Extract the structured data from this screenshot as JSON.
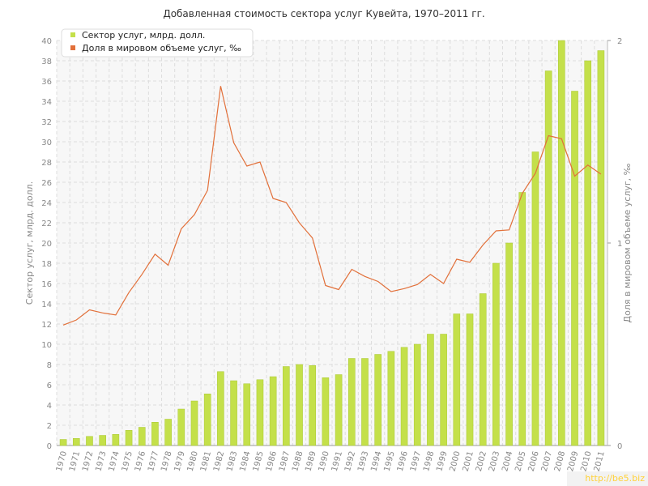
{
  "title": "Добавленная стоимость сектора услуг Кувейта, 1970–2011 гг.",
  "watermark": "http://be5.biz",
  "colors": {
    "bar": "#c4e04a",
    "bar_edge": "#a9c832",
    "line": "#e2703a",
    "grid": "#dddddd",
    "plot_bg": "#f7f7f7"
  },
  "chart_data": {
    "type": "bar",
    "title": "Добавленная стоимость сектора услуг Кувейта, 1970–2011 гг.",
    "xlabel": "",
    "ylabel": "Сектор услуг, млрд. долл.",
    "y2label": "Доля в мировом объеме услуг, ‰",
    "ylim": [
      0,
      40
    ],
    "y2lim": [
      0,
      2
    ],
    "yticks": [
      "0",
      "2",
      "4",
      "6",
      "8",
      "10",
      "12",
      "14",
      "16",
      "18",
      "20",
      "22",
      "24",
      "26",
      "28",
      "30",
      "32",
      "34",
      "36",
      "38",
      "40"
    ],
    "y2ticks": [
      "0",
      "1",
      "2"
    ],
    "grid": true,
    "legend_position": "top-left",
    "categories": [
      "1970",
      "1971",
      "1972",
      "1973",
      "1974",
      "1975",
      "1976",
      "1977",
      "1978",
      "1979",
      "1980",
      "1981",
      "1982",
      "1983",
      "1984",
      "1985",
      "1986",
      "1987",
      "1988",
      "1989",
      "1990",
      "1991",
      "1992",
      "1993",
      "1994",
      "1995",
      "1996",
      "1997",
      "1998",
      "1999",
      "2000",
      "2001",
      "2002",
      "2003",
      "2004",
      "2005",
      "2006",
      "2007",
      "2008",
      "2009",
      "2010",
      "2011"
    ],
    "series": [
      {
        "name": "Сектор услуг, млрд. долл.",
        "type": "bar",
        "axis": "left",
        "values": [
          0.6,
          0.7,
          0.9,
          1.0,
          1.1,
          1.5,
          1.8,
          2.3,
          2.6,
          3.6,
          4.4,
          5.1,
          7.3,
          6.4,
          6.1,
          6.5,
          6.8,
          7.8,
          8.0,
          7.9,
          6.7,
          7.0,
          8.6,
          8.6,
          9.0,
          9.3,
          9.7,
          10.0,
          11.0,
          11.0,
          13.0,
          13.0,
          15.0,
          18.0,
          20.0,
          25.0,
          29.0,
          37.0,
          40.0,
          35.0,
          38.0,
          39.0
        ]
      },
      {
        "name": "Доля в мировом объеме услуг, ‰",
        "type": "line",
        "axis": "right",
        "values": [
          0.595,
          0.62,
          0.67,
          0.655,
          0.645,
          0.755,
          0.845,
          0.945,
          0.89,
          1.07,
          1.14,
          1.26,
          1.775,
          1.495,
          1.38,
          1.4,
          1.22,
          1.2,
          1.1,
          1.025,
          0.79,
          0.77,
          0.87,
          0.835,
          0.81,
          0.76,
          0.775,
          0.795,
          0.845,
          0.8,
          0.92,
          0.905,
          0.99,
          1.06,
          1.065,
          1.245,
          1.345,
          1.53,
          1.515,
          1.33,
          1.385,
          1.34
        ]
      }
    ]
  }
}
